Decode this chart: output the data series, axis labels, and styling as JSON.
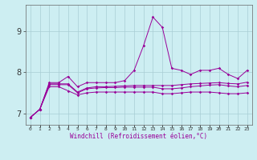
{
  "xlabel": "Windchill (Refroidissement éolien,°C)",
  "x_values": [
    0,
    1,
    2,
    3,
    4,
    5,
    6,
    7,
    8,
    9,
    10,
    11,
    12,
    13,
    14,
    15,
    16,
    17,
    18,
    19,
    20,
    21,
    22,
    23
  ],
  "line1": [
    6.9,
    7.1,
    7.75,
    7.75,
    7.9,
    7.65,
    7.75,
    7.75,
    7.75,
    7.75,
    7.8,
    8.05,
    8.65,
    9.35,
    9.1,
    8.1,
    8.05,
    7.95,
    8.05,
    8.05,
    8.1,
    7.95,
    7.85,
    8.05
  ],
  "line2": [
    6.9,
    7.1,
    7.72,
    7.72,
    7.72,
    7.52,
    7.62,
    7.65,
    7.65,
    7.66,
    7.67,
    7.68,
    7.68,
    7.68,
    7.68,
    7.68,
    7.7,
    7.72,
    7.73,
    7.74,
    7.75,
    7.73,
    7.72,
    7.76
  ],
  "line3": [
    6.9,
    7.1,
    7.7,
    7.7,
    7.7,
    7.5,
    7.6,
    7.62,
    7.63,
    7.63,
    7.64,
    7.64,
    7.64,
    7.64,
    7.6,
    7.6,
    7.62,
    7.65,
    7.67,
    7.69,
    7.7,
    7.67,
    7.65,
    7.68
  ],
  "line4": [
    6.9,
    7.1,
    7.65,
    7.65,
    7.55,
    7.45,
    7.5,
    7.52,
    7.52,
    7.52,
    7.52,
    7.52,
    7.52,
    7.52,
    7.48,
    7.48,
    7.5,
    7.52,
    7.52,
    7.52,
    7.5,
    7.48,
    7.48,
    7.5
  ],
  "line_color": "#990099",
  "bg_color": "#cdeef2",
  "grid_color": "#a8cdd5",
  "ylim": [
    6.72,
    9.65
  ],
  "yticks": [
    7,
    8,
    9
  ],
  "xlim": [
    -0.5,
    23.5
  ],
  "fig_width": 3.2,
  "fig_height": 2.0,
  "dpi": 100
}
